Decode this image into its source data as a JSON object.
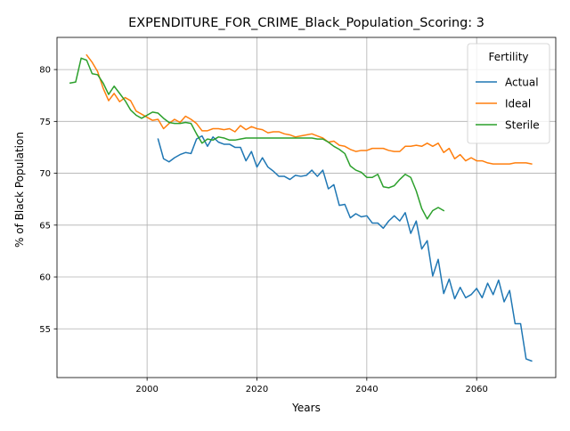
{
  "chart_data": {
    "type": "line",
    "title": "EXPENDITURE_FOR_CRIME_Black_Population_Scoring: 3",
    "xlabel": "Years",
    "ylabel": "% of Black Population",
    "xlim": [
      1983.6,
      2074.4
    ],
    "ylim": [
      50.3,
      83.1
    ],
    "xticks": [
      2000,
      2020,
      2040,
      2060
    ],
    "yticks": [
      55,
      60,
      65,
      70,
      75,
      80
    ],
    "grid": true,
    "legend": {
      "title": "Fertility",
      "position": "top-right"
    },
    "series": [
      {
        "name": "Actual",
        "color": "#1f77b4",
        "x": [
          2002,
          2003,
          2004,
          2005,
          2006,
          2007,
          2008,
          2009,
          2010,
          2011,
          2012,
          2013,
          2014,
          2015,
          2016,
          2017,
          2018,
          2019,
          2020,
          2021,
          2022,
          2023,
          2024,
          2025,
          2026,
          2027,
          2028,
          2029,
          2030,
          2031,
          2032,
          2033,
          2034,
          2035,
          2036,
          2037,
          2038,
          2039,
          2040,
          2041,
          2042,
          2043,
          2044,
          2045,
          2046,
          2047,
          2048,
          2049,
          2050,
          2051,
          2052,
          2053,
          2054,
          2055,
          2056,
          2057,
          2058,
          2059,
          2060,
          2061,
          2062,
          2063,
          2064,
          2065,
          2066,
          2067,
          2068,
          2069,
          2070
        ],
        "y": [
          73.3,
          71.4,
          71.1,
          71.5,
          71.8,
          72.0,
          71.9,
          73.3,
          73.6,
          72.6,
          73.5,
          73.0,
          72.8,
          72.8,
          72.5,
          72.5,
          71.2,
          72.1,
          70.6,
          71.5,
          70.6,
          70.2,
          69.7,
          69.7,
          69.4,
          69.8,
          69.7,
          69.8,
          70.3,
          69.7,
          70.3,
          68.5,
          68.9,
          66.9,
          67.0,
          65.7,
          66.1,
          65.8,
          65.9,
          65.2,
          65.2,
          64.7,
          65.4,
          65.9,
          65.4,
          66.2,
          64.2,
          65.4,
          62.7,
          63.5,
          60.1,
          61.7,
          58.4,
          59.8,
          57.9,
          59.0,
          58.0,
          58.3,
          58.9,
          58.0,
          59.4,
          58.3,
          59.7,
          57.6,
          58.7,
          55.5,
          55.5,
          52.1,
          51.9
        ]
      },
      {
        "name": "Ideal",
        "color": "#ff7f0e",
        "x": [
          1989,
          1990,
          1991,
          1992,
          1993,
          1994,
          1995,
          1996,
          1997,
          1998,
          1999,
          2000,
          2001,
          2002,
          2003,
          2004,
          2005,
          2006,
          2007,
          2008,
          2009,
          2010,
          2011,
          2012,
          2013,
          2014,
          2015,
          2016,
          2017,
          2018,
          2019,
          2020,
          2021,
          2022,
          2023,
          2024,
          2025,
          2026,
          2027,
          2028,
          2029,
          2030,
          2031,
          2032,
          2033,
          2034,
          2035,
          2036,
          2037,
          2038,
          2039,
          2040,
          2041,
          2042,
          2043,
          2044,
          2045,
          2046,
          2047,
          2048,
          2049,
          2050,
          2051,
          2052,
          2053,
          2054,
          2055,
          2056,
          2057,
          2058,
          2059,
          2060,
          2061,
          2062,
          2063,
          2064,
          2065,
          2066,
          2067,
          2068,
          2069,
          2070
        ],
        "y": [
          81.4,
          80.7,
          79.8,
          78.2,
          77.0,
          77.7,
          76.9,
          77.3,
          77.0,
          76.0,
          75.7,
          75.4,
          75.1,
          75.2,
          74.3,
          74.8,
          75.2,
          74.9,
          75.5,
          75.2,
          74.8,
          74.1,
          74.1,
          74.3,
          74.3,
          74.2,
          74.3,
          74.0,
          74.6,
          74.2,
          74.5,
          74.3,
          74.2,
          73.9,
          74.0,
          74.0,
          73.8,
          73.7,
          73.5,
          73.6,
          73.7,
          73.8,
          73.6,
          73.4,
          73.0,
          73.1,
          72.7,
          72.6,
          72.3,
          72.1,
          72.2,
          72.2,
          72.4,
          72.4,
          72.4,
          72.2,
          72.1,
          72.1,
          72.6,
          72.6,
          72.7,
          72.6,
          72.9,
          72.6,
          72.9,
          72.0,
          72.4,
          71.4,
          71.8,
          71.2,
          71.5,
          71.2,
          71.2,
          71.0,
          70.9,
          70.9,
          70.9,
          70.9,
          71.0,
          71.0,
          71.0,
          70.9
        ]
      },
      {
        "name": "Sterile",
        "color": "#2ca02c",
        "x": [
          1986,
          1987,
          1988,
          1989,
          1990,
          1991,
          1992,
          1993,
          1994,
          1995,
          1996,
          1997,
          1998,
          1999,
          2000,
          2001,
          2002,
          2003,
          2004,
          2005,
          2006,
          2007,
          2008,
          2009,
          2010,
          2011,
          2012,
          2013,
          2014,
          2015,
          2016,
          2017,
          2018,
          2019,
          2020,
          2021,
          2022,
          2023,
          2024,
          2025,
          2026,
          2027,
          2028,
          2029,
          2030,
          2031,
          2032,
          2033,
          2034,
          2035,
          2036,
          2037,
          2038,
          2039,
          2040,
          2041,
          2042,
          2043,
          2044,
          2045,
          2046,
          2047,
          2048,
          2049,
          2050,
          2051,
          2052,
          2053,
          2054
        ],
        "y": [
          78.7,
          78.8,
          81.1,
          80.9,
          79.6,
          79.5,
          78.7,
          77.6,
          78.4,
          77.7,
          77.0,
          76.1,
          75.6,
          75.3,
          75.6,
          75.9,
          75.8,
          75.3,
          74.9,
          74.8,
          74.8,
          74.9,
          74.8,
          73.8,
          72.9,
          73.3,
          73.2,
          73.5,
          73.4,
          73.2,
          73.2,
          73.3,
          73.4,
          73.4,
          73.4,
          73.4,
          73.4,
          73.4,
          73.4,
          73.4,
          73.4,
          73.4,
          73.4,
          73.4,
          73.4,
          73.3,
          73.3,
          73.0,
          72.6,
          72.3,
          71.9,
          70.7,
          70.3,
          70.1,
          69.6,
          69.6,
          69.9,
          68.7,
          68.6,
          68.8,
          69.4,
          69.9,
          69.6,
          68.3,
          66.6,
          65.6,
          66.4,
          66.7,
          66.4
        ]
      }
    ]
  }
}
